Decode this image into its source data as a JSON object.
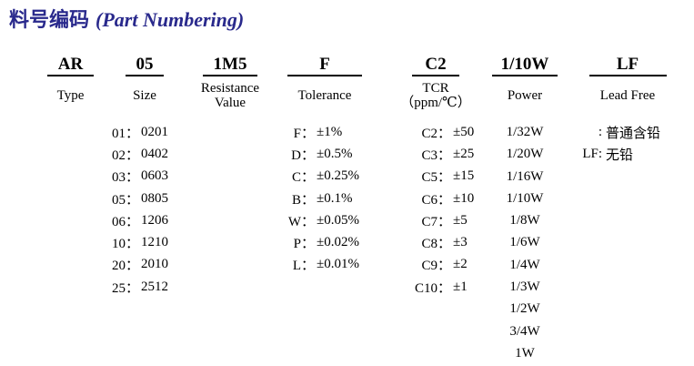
{
  "title": {
    "zh": "料号编码",
    "en": "(Part Numbering)"
  },
  "columns": [
    {
      "code": "AR",
      "label_lines": [
        "Type"
      ],
      "items": []
    },
    {
      "code": "05",
      "label_lines": [
        "Size"
      ],
      "items": [
        {
          "code": "01：",
          "value": "0201"
        },
        {
          "code": "02：",
          "value": "0402"
        },
        {
          "code": "03：",
          "value": "0603"
        },
        {
          "code": "05：",
          "value": "0805"
        },
        {
          "code": "06：",
          "value": "1206"
        },
        {
          "code": "10：",
          "value": "1210"
        },
        {
          "code": "20：",
          "value": "2010"
        },
        {
          "code": "25：",
          "value": "2512"
        }
      ]
    },
    {
      "code": "1M5",
      "label_lines": [
        "Resistance",
        "Value"
      ],
      "items": []
    },
    {
      "code": "F",
      "label_lines": [
        "Tolerance"
      ],
      "items": [
        {
          "code": "F：",
          "value": "±1%"
        },
        {
          "code": "D：",
          "value": "±0.5%"
        },
        {
          "code": "C：",
          "value": "±0.25%"
        },
        {
          "code": "B：",
          "value": "±0.1%"
        },
        {
          "code": "W：",
          "value": "±0.05%"
        },
        {
          "code": "P：",
          "value": "±0.02%"
        },
        {
          "code": "L：",
          "value": "±0.01%"
        }
      ]
    },
    {
      "code": "C2",
      "label_lines": [
        "TCR",
        "（ppm/℃）"
      ],
      "items": [
        {
          "code": "C2：",
          "value": "±50"
        },
        {
          "code": "C3：",
          "value": "±25"
        },
        {
          "code": "C5：",
          "value": "±15"
        },
        {
          "code": "C6：",
          "value": "±10"
        },
        {
          "code": "C7：",
          "value": "±5"
        },
        {
          "code": "C8：",
          "value": "±3"
        },
        {
          "code": "C9：",
          "value": "±2"
        },
        {
          "code": "C10：",
          "value": "±1"
        }
      ]
    },
    {
      "code": "1/10W",
      "label_lines": [
        "Power"
      ],
      "items_plain": [
        "1/32W",
        "1/20W",
        "1/16W",
        "1/10W",
        "1/8W",
        "1/6W",
        "1/4W",
        "1/3W",
        "1/2W",
        "3/4W",
        "1W"
      ]
    },
    {
      "code": "LF",
      "label_lines": [
        "Lead Free"
      ],
      "items": [
        {
          "code": ":",
          "value": "普通含铅"
        },
        {
          "code": "LF:",
          "value": "无铅"
        }
      ]
    }
  ],
  "colors": {
    "title": "#29298C",
    "text": "#000000"
  }
}
